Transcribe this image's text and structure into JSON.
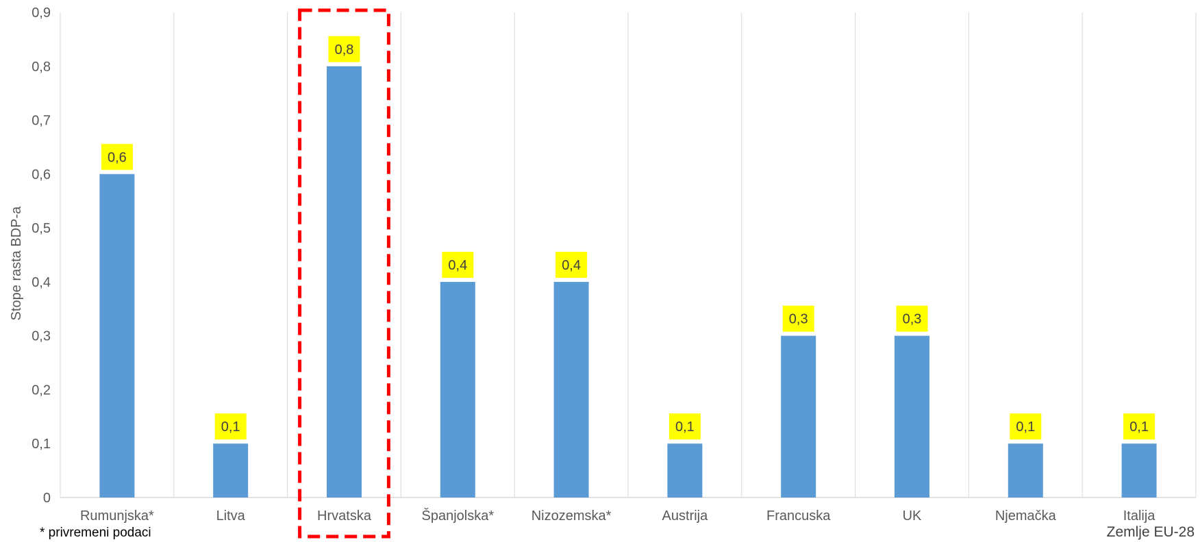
{
  "chart_data": {
    "type": "bar",
    "categories": [
      "Rumunjska*",
      "Litva",
      "Hrvatska",
      "Španjolska*",
      "Nizozemska*",
      "Austrija",
      "Francuska",
      "UK",
      "Njemačka",
      "Italija"
    ],
    "values": [
      0.6,
      0.1,
      0.8,
      0.4,
      0.4,
      0.1,
      0.3,
      0.3,
      0.1,
      0.1
    ],
    "value_labels": [
      "0,6",
      "0,1",
      "0,8",
      "0,4",
      "0,4",
      "0,1",
      "0,3",
      "0,3",
      "0,1",
      "0,1"
    ],
    "title": "",
    "xlabel": "",
    "ylabel": "Stope rasta BDP-a",
    "ylim": [
      0,
      0.9
    ],
    "yticks": [
      0,
      0.1,
      0.2,
      0.3,
      0.4,
      0.5,
      0.6,
      0.7,
      0.8,
      0.9
    ],
    "ytick_labels": [
      "0",
      "0,1",
      "0,2",
      "0,3",
      "0,4",
      "0,5",
      "0,6",
      "0,7",
      "0,8",
      "0,9"
    ],
    "highlighted_category": "Hrvatska",
    "grid": "vertical category separators",
    "colors": {
      "bar": "#5b9bd5",
      "data_label_bg": "#ffff00",
      "highlight_box": "#ff0000",
      "grid": "#d9d9d9"
    }
  },
  "notes": {
    "footnote": "* privremeni podaci",
    "series_note": "Zemlje EU-28"
  }
}
